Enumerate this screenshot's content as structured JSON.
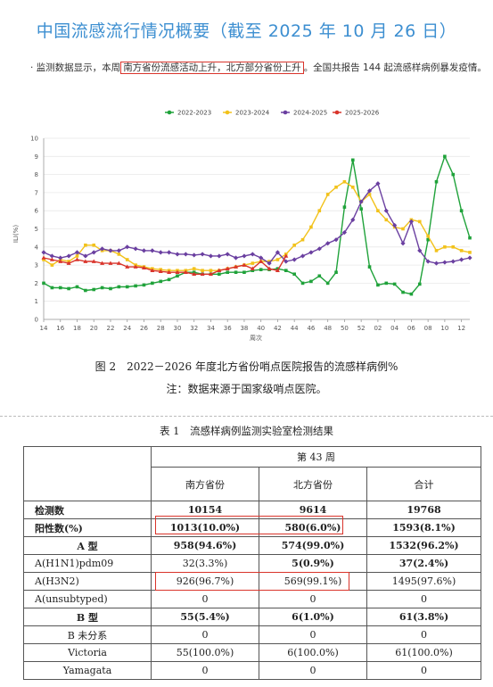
{
  "title": "中国流感流行情况概要（截至 2025 年 10 月 26 日）",
  "intro": {
    "prefix": "· 监测数据显示，本周",
    "highlight": "南方省份流感活动上升，北方部分省份上升",
    "suffix": "。全国共报告 144 起流感样病例暴发疫情。"
  },
  "chart_data": {
    "type": "line",
    "legend": [
      "2022-2023",
      "2023-2024",
      "2024-2025",
      "2025-2026"
    ],
    "legend_position": "top",
    "colors": [
      "#1fa23a",
      "#f2c21b",
      "#6a3fa0",
      "#d9342b"
    ],
    "ylabel": "ILI(%)",
    "xlabel": "周次",
    "ylim": [
      0,
      10
    ],
    "yticks": [
      "0",
      "1",
      "2",
      "3",
      "4",
      "5",
      "6",
      "7",
      "8",
      "9",
      "10"
    ],
    "x_weeks": [
      "14",
      "15",
      "16",
      "17",
      "18",
      "19",
      "20",
      "21",
      "22",
      "23",
      "24",
      "25",
      "26",
      "27",
      "28",
      "29",
      "30",
      "31",
      "32",
      "33",
      "34",
      "35",
      "36",
      "37",
      "38",
      "39",
      "40",
      "41",
      "42",
      "43",
      "44",
      "45",
      "46",
      "47",
      "48",
      "49",
      "50",
      "51",
      "52",
      "01",
      "02",
      "03",
      "04",
      "05",
      "06",
      "07",
      "08",
      "09",
      "10",
      "11",
      "12",
      "13"
    ],
    "xtick_labels": [
      "14",
      "16",
      "18",
      "20",
      "22",
      "24",
      "26",
      "28",
      "30",
      "32",
      "34",
      "36",
      "38",
      "40",
      "42",
      "44",
      "46",
      "48",
      "50",
      "52",
      "02",
      "04",
      "06",
      "08",
      "10",
      "12"
    ],
    "series": [
      {
        "name": "2022-2023",
        "values": [
          2.0,
          1.75,
          1.75,
          1.7,
          1.8,
          1.6,
          1.65,
          1.75,
          1.7,
          1.8,
          1.8,
          1.85,
          1.9,
          2.0,
          2.1,
          2.2,
          2.4,
          2.6,
          2.6,
          2.5,
          2.5,
          2.5,
          2.6,
          2.6,
          2.6,
          2.7,
          2.75,
          2.75,
          2.8,
          2.7,
          2.5,
          2.0,
          2.1,
          2.4,
          2.0,
          2.6,
          6.2,
          8.8,
          6.1,
          2.9,
          1.9,
          2.0,
          1.95,
          1.5,
          1.4,
          1.95,
          4.4,
          7.6,
          9.0,
          8.0,
          6.0,
          4.5
        ]
      },
      {
        "name": "2023-2024",
        "values": [
          3.3,
          3.0,
          3.3,
          3.2,
          3.5,
          4.1,
          4.1,
          3.8,
          3.8,
          3.6,
          3.3,
          3.0,
          2.9,
          2.8,
          2.75,
          2.7,
          2.7,
          2.7,
          2.8,
          2.7,
          2.7,
          2.7,
          2.8,
          2.9,
          3.0,
          3.1,
          3.2,
          3.2,
          3.3,
          3.6,
          4.1,
          4.4,
          5.1,
          6.0,
          6.9,
          7.3,
          7.6,
          7.3,
          6.5,
          6.9,
          6.0,
          5.5,
          5.1,
          5.0,
          5.5,
          5.4,
          4.6,
          3.8,
          4.0,
          4.0,
          3.8,
          3.7
        ]
      },
      {
        "name": "2024-2025",
        "values": [
          3.7,
          3.5,
          3.4,
          3.5,
          3.7,
          3.5,
          3.7,
          3.9,
          3.8,
          3.8,
          4.0,
          3.9,
          3.8,
          3.8,
          3.7,
          3.7,
          3.6,
          3.6,
          3.55,
          3.6,
          3.5,
          3.5,
          3.6,
          3.4,
          3.5,
          3.6,
          3.4,
          3.1,
          3.7,
          3.2,
          3.3,
          3.5,
          3.7,
          3.9,
          4.2,
          4.4,
          4.8,
          5.5,
          6.5,
          7.1,
          7.5,
          6.0,
          5.2,
          4.2,
          5.4,
          3.8,
          3.2,
          3.1,
          3.15,
          3.2,
          3.3,
          3.4
        ]
      },
      {
        "name": "2025-2026",
        "values": [
          3.4,
          3.3,
          3.2,
          3.1,
          3.3,
          3.2,
          3.2,
          3.1,
          3.1,
          3.1,
          2.9,
          2.9,
          2.85,
          2.7,
          2.65,
          2.6,
          2.6,
          2.6,
          2.5,
          2.5,
          2.5,
          2.7,
          2.8,
          2.9,
          3.0,
          2.8,
          3.2,
          2.8,
          2.7,
          3.5
        ]
      }
    ]
  },
  "figure": {
    "caption": "图 2　2022－2026 年度北方省份哨点医院报告的流感样病例%",
    "note": "注：数据来源于国家级哨点医院。"
  },
  "table": {
    "caption": "表 1　流感样病例监测实验室检测结果",
    "week_header": "第 43 周",
    "columns": [
      "南方省份",
      "北方省份",
      "合计"
    ],
    "rows": [
      {
        "label": "检测数",
        "values": [
          "10154",
          "9614",
          "19768"
        ]
      },
      {
        "label": "阳性数(%)",
        "values": [
          "1013(10.0%)",
          "580(6.0%)",
          "1593(8.1%)"
        ]
      },
      {
        "label": "A 型",
        "values": [
          "958(94.6%)",
          "574(99.0%)",
          "1532(96.2%)"
        ]
      },
      {
        "label": "A(H1N1)pdm09",
        "values": [
          "32(3.3%)",
          "5(0.9%)",
          "37(2.4%)"
        ]
      },
      {
        "label": "A(H3N2)",
        "values": [
          "926(96.7%)",
          "569(99.1%)",
          "1495(97.6%)"
        ]
      },
      {
        "label": "A(unsubtyped)",
        "values": [
          "0",
          "0",
          "0"
        ]
      },
      {
        "label": "B 型",
        "values": [
          "55(5.4%)",
          "6(1.0%)",
          "61(3.8%)"
        ]
      },
      {
        "label": "B 未分系",
        "values": [
          "0",
          "0",
          "0"
        ]
      },
      {
        "label": "Victoria",
        "values": [
          "55(100.0%)",
          "6(100.0%)",
          "61(100.0%)"
        ]
      },
      {
        "label": "Yamagata",
        "values": [
          "0",
          "0",
          "0"
        ]
      }
    ]
  }
}
